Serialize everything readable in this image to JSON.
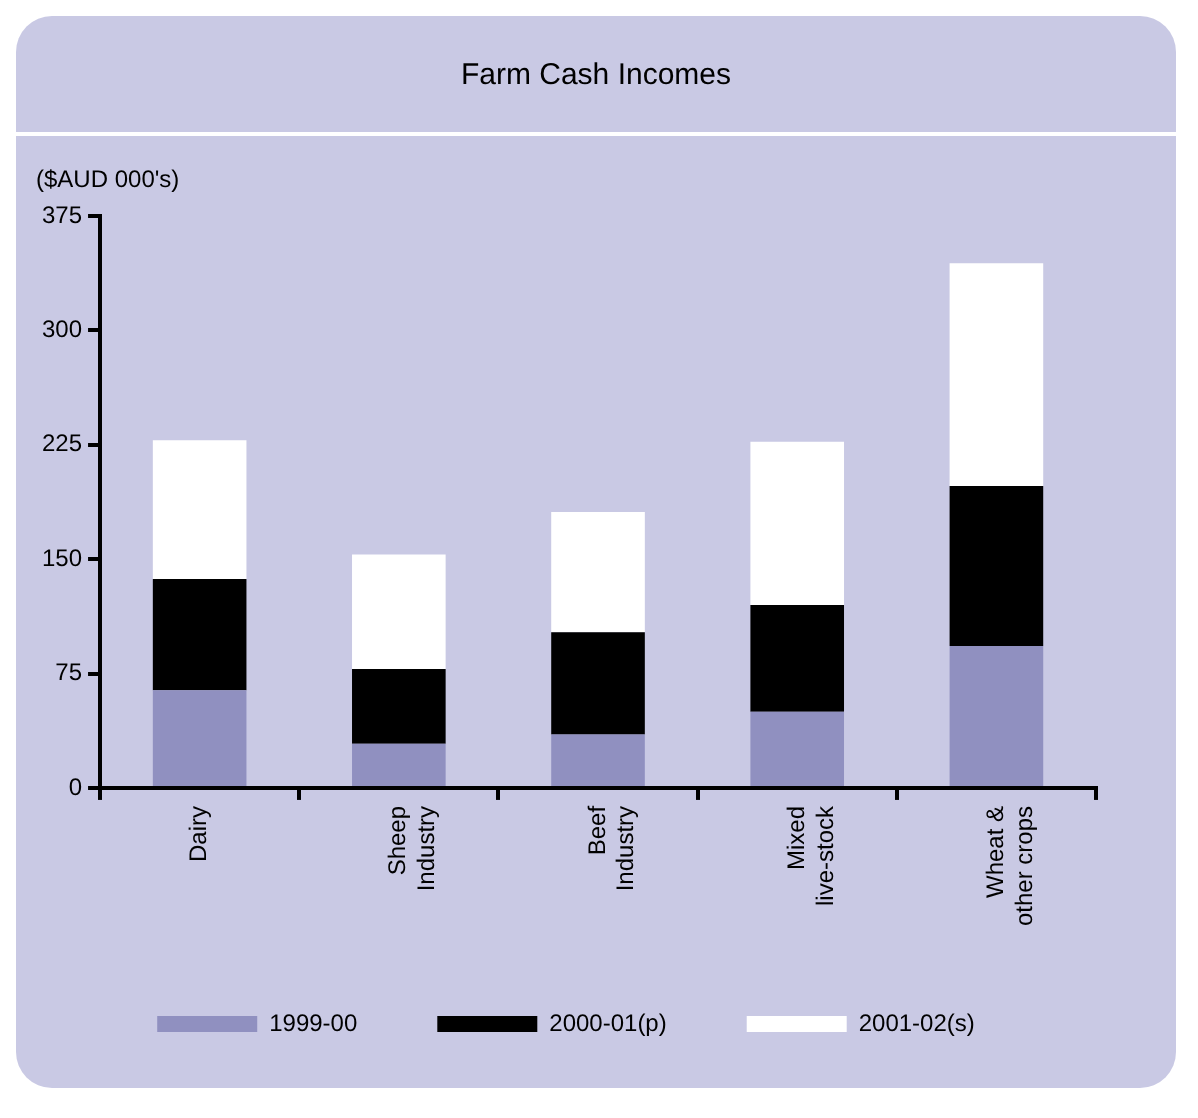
{
  "chart_data": {
    "type": "bar",
    "title": "Farm Cash Incomes",
    "ylabel": "($AUD 000's)",
    "categories": [
      "Dairy",
      "Sheep Industry",
      "Beef Industry",
      "Mixed live-stock",
      "Wheat & other crops"
    ],
    "series": [
      {
        "name": "1999-00",
        "color": "#9090c0",
        "values": [
          64,
          29,
          35,
          50,
          93
        ]
      },
      {
        "name": "2000-01(p)",
        "color": "#000000",
        "values": [
          73,
          49,
          67,
          70,
          105
        ]
      },
      {
        "name": "2001-02(s)",
        "color": "#ffffff",
        "values": [
          91,
          75,
          79,
          107,
          146
        ]
      }
    ],
    "stacked": true,
    "ylim": [
      0,
      375
    ],
    "yticks": [
      0,
      75,
      150,
      225,
      300,
      375
    ],
    "grid": false,
    "legend": "bottom"
  }
}
